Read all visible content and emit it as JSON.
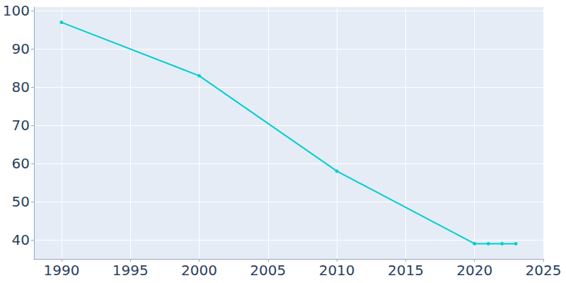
{
  "chart_data": {
    "type": "line",
    "x": [
      1990,
      2000,
      2010,
      2020,
      2021,
      2022,
      2023
    ],
    "values": [
      97,
      83,
      58,
      39,
      39,
      39,
      39
    ],
    "color": "#00ced1",
    "marker": "circle",
    "xlim": [
      1988,
      2025
    ],
    "xticks": [
      1990,
      1995,
      2000,
      2005,
      2010,
      2015,
      2020,
      2025
    ],
    "ylim": [
      35,
      101
    ],
    "yticks": [
      40,
      50,
      60,
      70,
      80,
      90,
      100
    ],
    "grid": true
  }
}
